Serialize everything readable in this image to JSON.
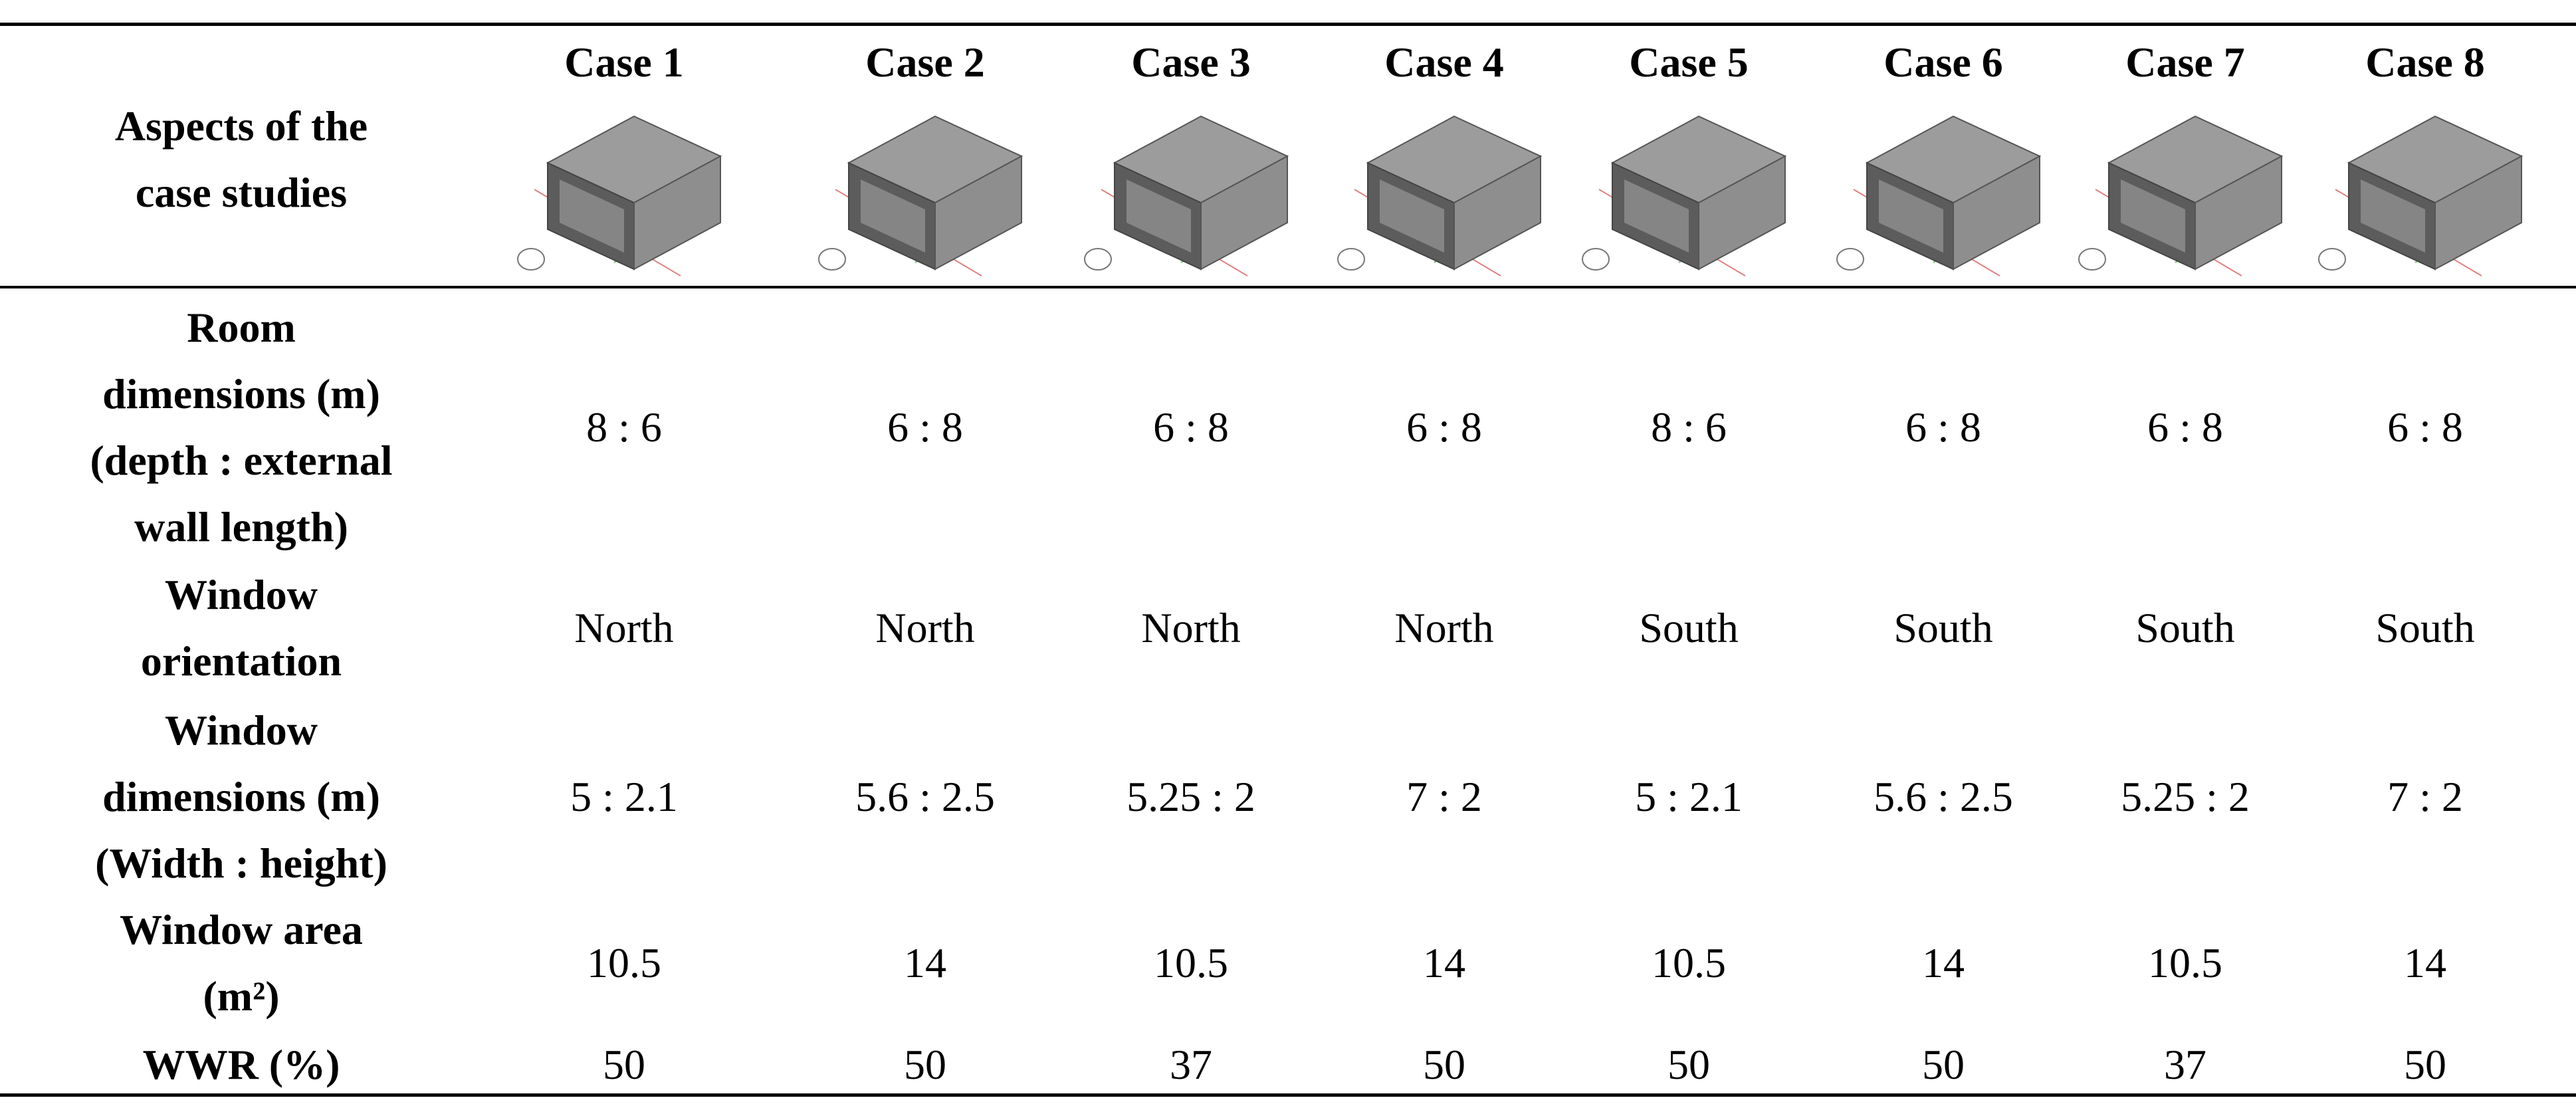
{
  "table": {
    "header": {
      "label": [
        "Aspects of the",
        "case studies"
      ],
      "cases": [
        "Case 1",
        "Case 2",
        "Case 3",
        "Case 4",
        "Case 5",
        "Case 6",
        "Case 7",
        "Case 8"
      ]
    },
    "rows": [
      {
        "label": [
          "Room",
          "dimensions (m)",
          "(depth : external",
          "wall length)"
        ],
        "values": [
          "8 : 6",
          "6 : 8",
          "6 : 8",
          "6 : 8",
          "8 : 6",
          "6 : 8",
          "6 : 8",
          "6 : 8"
        ]
      },
      {
        "label": [
          "Window",
          "orientation"
        ],
        "values": [
          "North",
          "North",
          "North",
          "North",
          "South",
          "South",
          "South",
          "South"
        ]
      },
      {
        "label": [
          "Window",
          "dimensions (m)",
          "(Width : height)"
        ],
        "values": [
          "5 : 2.1",
          "5.6 : 2.5",
          "5.25 : 2",
          "7 : 2",
          "5 : 2.1",
          "5.6 : 2.5",
          "5.25 : 2",
          "7 : 2"
        ]
      },
      {
        "label": [
          "Window area",
          "(m²)"
        ],
        "values": [
          10.5,
          14,
          10.5,
          14,
          10.5,
          14,
          10.5,
          14
        ]
      },
      {
        "label": [
          "WWR (%)"
        ],
        "values": [
          50,
          50,
          37,
          50,
          50,
          50,
          37,
          50
        ]
      }
    ]
  }
}
